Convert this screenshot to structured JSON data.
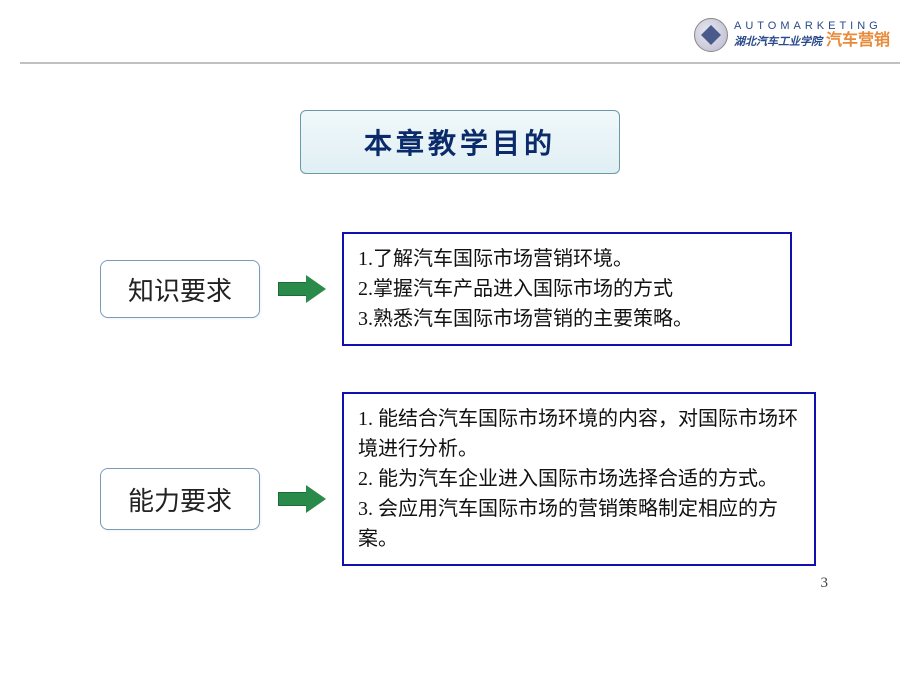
{
  "header": {
    "top_line": "AUTOMARKETING",
    "bottom_blue": "湖北汽车工业学院",
    "bottom_orange": "汽车营销"
  },
  "title": "本章教学目的",
  "sections": [
    {
      "label": "知识要求",
      "items": [
        {
          "num": "1.",
          "text": "了解汽车国际市场营销环境。"
        },
        {
          "num": "2.",
          "text": "掌握汽车产品进入国际市场的方式"
        },
        {
          "num": "3.",
          "text": "熟悉汽车国际市场营销的主要策略。"
        }
      ]
    },
    {
      "label": "能力要求",
      "items": [
        {
          "num": "1. ",
          "text": "能结合汽车国际市场环境的内容，对国际市场环境进行分析。"
        },
        {
          "num": "2. ",
          "text": "能为汽车企业进入国际市场选择合适的方式。"
        },
        {
          "num": "3. ",
          "text": "会应用汽车国际市场的营销策略制定相应的方案。"
        }
      ]
    }
  ],
  "page_number": "3",
  "colors": {
    "title_text": "#0a2a6a",
    "title_bg_top": "#f0f8fa",
    "title_bg_bottom": "#e0eff4",
    "title_border": "#6a9aaa",
    "label_border": "#7a9aba",
    "arrow_fill": "#2a8a4a",
    "content_border": "#1010b0",
    "header_blue": "#2a4a8a",
    "header_orange": "#e88a3a",
    "divider": "#c0c0c0"
  }
}
